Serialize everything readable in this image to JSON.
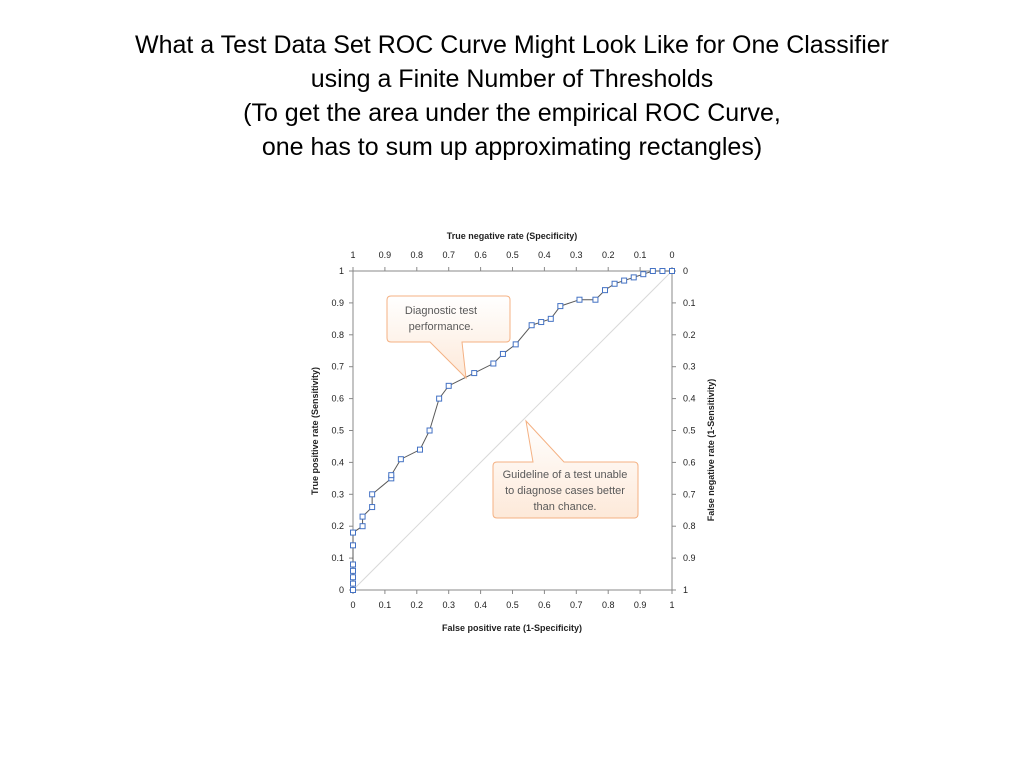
{
  "slide": {
    "title_lines": [
      "What a Test Data Set ROC Curve Might Look Like for One Classifier",
      "using a Finite Number of Thresholds",
      "(To get the area under the empirical ROC Curve,",
      "one has to sum up approximating rectangles)"
    ]
  },
  "chart_data": {
    "type": "line",
    "xlabel": "False positive rate (1-Specificity)",
    "ylabel": "True positive rate (Sensitivity)",
    "x2label": "True negative rate (Specificity)",
    "y2label": "False negative rate (1-Sensitivity)",
    "xlim": [
      0,
      1
    ],
    "ylim": [
      0,
      1
    ],
    "x_ticks": [
      "0",
      "0.1",
      "0.2",
      "0.3",
      "0.4",
      "0.5",
      "0.6",
      "0.7",
      "0.8",
      "0.9",
      "1"
    ],
    "y_ticks": [
      "0",
      "0.1",
      "0.2",
      "0.3",
      "0.4",
      "0.5",
      "0.6",
      "0.7",
      "0.8",
      "0.9",
      "1"
    ],
    "x2_ticks": [
      "1",
      "0.9",
      "0.8",
      "0.7",
      "0.6",
      "0.5",
      "0.4",
      "0.3",
      "0.2",
      "0.1",
      "0"
    ],
    "y2_ticks": [
      "0",
      "0.1",
      "0.2",
      "0.3",
      "0.4",
      "0.5",
      "0.6",
      "0.7",
      "0.8",
      "0.9",
      "1"
    ],
    "grid": false,
    "series": [
      {
        "x": [
          0,
          0,
          0,
          0,
          0,
          0,
          0,
          0.03,
          0.03,
          0.06,
          0.06,
          0.12,
          0.12,
          0.15,
          0.21,
          0.24,
          0.27,
          0.3,
          0.38,
          0.44,
          0.47,
          0.51,
          0.56,
          0.59,
          0.62,
          0.65,
          0.71,
          0.76,
          0.79,
          0.82,
          0.85,
          0.88,
          0.91,
          0.94,
          0.97,
          1
        ],
        "y": [
          0,
          0.02,
          0.04,
          0.06,
          0.08,
          0.14,
          0.18,
          0.2,
          0.23,
          0.26,
          0.3,
          0.35,
          0.36,
          0.41,
          0.44,
          0.5,
          0.6,
          0.64,
          0.68,
          0.71,
          0.74,
          0.77,
          0.83,
          0.84,
          0.85,
          0.89,
          0.91,
          0.91,
          0.94,
          0.96,
          0.97,
          0.98,
          0.99,
          1,
          1,
          1
        ],
        "color": "#4472c4"
      },
      {
        "x": [
          0,
          1
        ],
        "y": [
          0,
          1
        ],
        "color": "#d9d9d9"
      }
    ],
    "annotations": [
      {
        "text_lines": [
          "Diagnostic test",
          "performance."
        ]
      },
      {
        "text_lines": [
          "Guideline of a test unable",
          "to diagnose cases better",
          "than chance."
        ]
      }
    ],
    "colors": {
      "callout_border": "#f4b183",
      "callout_fill_top": "#ffffff",
      "callout_fill_bottom": "#fde9d9",
      "callout_text": "#595959"
    }
  }
}
